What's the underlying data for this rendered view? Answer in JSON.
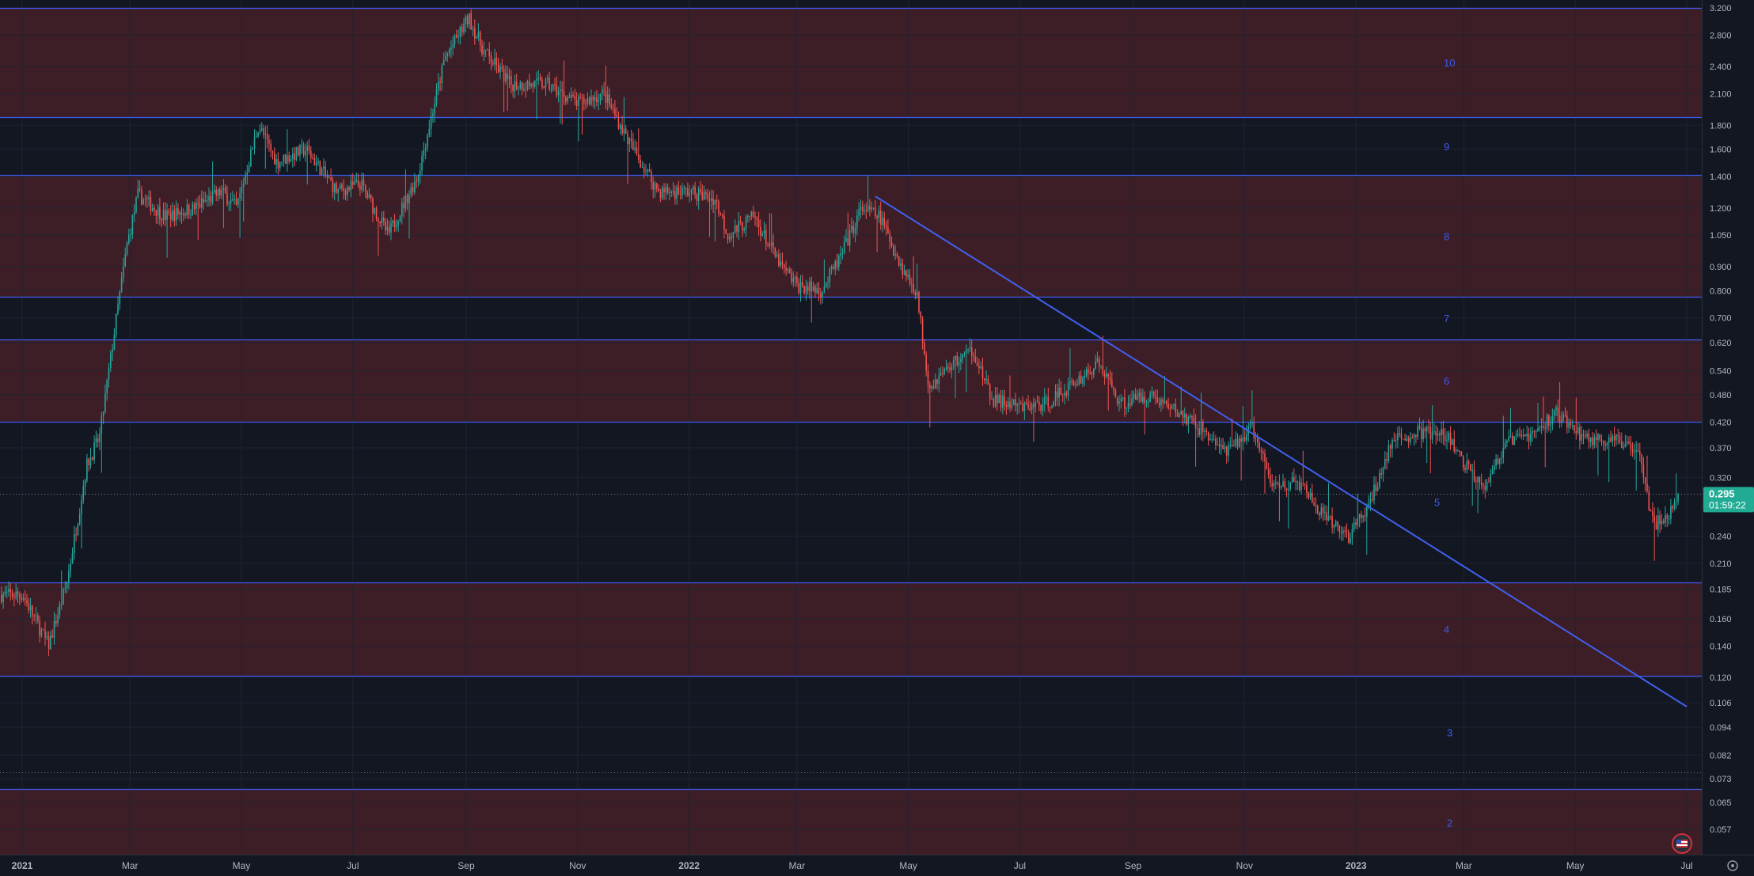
{
  "chart_data": {
    "type": "candlestick",
    "title": "",
    "xlabel": "",
    "ylabel": "",
    "y_scale": "log",
    "ylim": [
      0.05,
      3.3
    ],
    "grid": true,
    "y_ticks": [
      "3.200",
      "2.800",
      "2.400",
      "2.100",
      "1.800",
      "1.600",
      "1.400",
      "1.200",
      "1.050",
      "0.900",
      "0.800",
      "0.700",
      "0.620",
      "0.540",
      "0.480",
      "0.420",
      "0.370",
      "0.320",
      "0.240",
      "0.210",
      "0.185",
      "0.160",
      "0.140",
      "0.120",
      "0.106",
      "0.094",
      "0.082",
      "0.073",
      "0.065",
      "0.057"
    ],
    "x_ticks": [
      "2021",
      "Mar",
      "May",
      "Jul",
      "Sep",
      "Nov",
      "2022",
      "Mar",
      "May",
      "Jul",
      "Sep",
      "Nov",
      "2023",
      "Mar",
      "May",
      "Jul"
    ],
    "current_price": {
      "value": "0.295",
      "countdown": "01:59:22",
      "price": 0.295
    },
    "levels": [
      {
        "label": "10",
        "low": 1.87,
        "high": 3.2
      },
      {
        "label": "9",
        "low": 1.41,
        "high": 1.87
      },
      {
        "label": "8",
        "low": 0.775,
        "high": 1.41
      },
      {
        "label": "7",
        "low": 0.63,
        "high": 0.775
      },
      {
        "label": "6",
        "low": 0.421,
        "high": 0.63
      },
      {
        "label": "5",
        "low": 0.191,
        "high": 0.421
      },
      {
        "label": "4",
        "low": 0.121,
        "high": 0.191
      },
      {
        "label": "3",
        "low": 0.0695,
        "high": 0.121
      },
      {
        "label": "2",
        "low": 0.05,
        "high": 0.0695
      }
    ],
    "trendline": {
      "x1": "2022-04-13",
      "y1": 1.27,
      "x2": "2023-07-01",
      "y2": 0.104
    },
    "price_path": [
      [
        "2021-01-01",
        0.18
      ],
      [
        "2021-01-15",
        0.14
      ],
      [
        "2021-01-25",
        0.19
      ],
      [
        "2021-02-05",
        0.34
      ],
      [
        "2021-02-12",
        0.39
      ],
      [
        "2021-02-20",
        0.65
      ],
      [
        "2021-02-27",
        1.0
      ],
      [
        "2021-03-05",
        1.28
      ],
      [
        "2021-03-20",
        1.15
      ],
      [
        "2021-04-05",
        1.2
      ],
      [
        "2021-04-20",
        1.3
      ],
      [
        "2021-04-28",
        1.2
      ],
      [
        "2021-05-10",
        1.8
      ],
      [
        "2021-05-20",
        1.5
      ],
      [
        "2021-06-05",
        1.6
      ],
      [
        "2021-06-22",
        1.3
      ],
      [
        "2021-07-05",
        1.35
      ],
      [
        "2021-07-20",
        1.05
      ],
      [
        "2021-08-05",
        1.4
      ],
      [
        "2021-08-20",
        2.5
      ],
      [
        "2021-09-02",
        3.05
      ],
      [
        "2021-09-10",
        2.6
      ],
      [
        "2021-09-25",
        2.2
      ],
      [
        "2021-10-15",
        2.2
      ],
      [
        "2021-11-01",
        2.0
      ],
      [
        "2021-11-15",
        2.1
      ],
      [
        "2021-12-01",
        1.6
      ],
      [
        "2021-12-15",
        1.3
      ],
      [
        "2022-01-01",
        1.3
      ],
      [
        "2022-01-15",
        1.25
      ],
      [
        "2022-01-22",
        1.05
      ],
      [
        "2022-02-05",
        1.15
      ],
      [
        "2022-02-20",
        0.9
      ],
      [
        "2022-03-01",
        0.82
      ],
      [
        "2022-03-14",
        0.8
      ],
      [
        "2022-03-25",
        0.95
      ],
      [
        "2022-04-05",
        1.2
      ],
      [
        "2022-04-15",
        1.15
      ],
      [
        "2022-04-28",
        0.88
      ],
      [
        "2022-05-05",
        0.8
      ],
      [
        "2022-05-12",
        0.5
      ],
      [
        "2022-05-25",
        0.56
      ],
      [
        "2022-06-05",
        0.6
      ],
      [
        "2022-06-15",
        0.47
      ],
      [
        "2022-07-01",
        0.45
      ],
      [
        "2022-07-15",
        0.46
      ],
      [
        "2022-07-28",
        0.5
      ],
      [
        "2022-08-13",
        0.56
      ],
      [
        "2022-08-25",
        0.46
      ],
      [
        "2022-09-10",
        0.48
      ],
      [
        "2022-09-25",
        0.44
      ],
      [
        "2022-10-10",
        0.4
      ],
      [
        "2022-10-22",
        0.36
      ],
      [
        "2022-11-05",
        0.41
      ],
      [
        "2022-11-15",
        0.31
      ],
      [
        "2022-12-01",
        0.31
      ],
      [
        "2022-12-15",
        0.26
      ],
      [
        "2022-12-28",
        0.24
      ],
      [
        "2023-01-08",
        0.28
      ],
      [
        "2023-01-20",
        0.38
      ],
      [
        "2023-02-05",
        0.4
      ],
      [
        "2023-02-20",
        0.39
      ],
      [
        "2023-03-01",
        0.34
      ],
      [
        "2023-03-12",
        0.31
      ],
      [
        "2023-03-25",
        0.38
      ],
      [
        "2023-04-10",
        0.4
      ],
      [
        "2023-04-20",
        0.44
      ],
      [
        "2023-05-05",
        0.39
      ],
      [
        "2023-05-25",
        0.38
      ],
      [
        "2023-06-05",
        0.37
      ],
      [
        "2023-06-10",
        0.28
      ],
      [
        "2023-06-14",
        0.255
      ],
      [
        "2023-06-22",
        0.27
      ],
      [
        "2023-06-26",
        0.295
      ]
    ]
  }
}
